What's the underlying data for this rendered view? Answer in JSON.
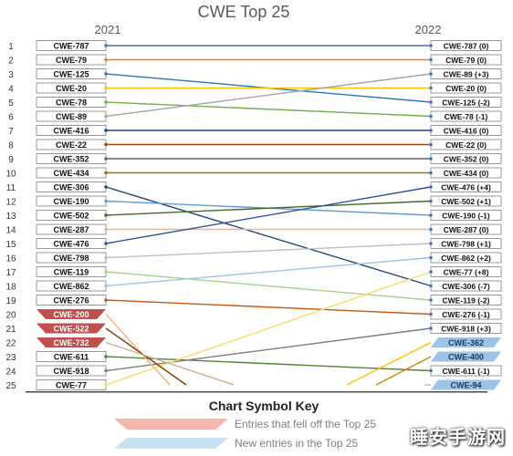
{
  "chart_data": {
    "type": "slope",
    "title": "CWE Top 25",
    "left_year": "2021",
    "right_year": "2022",
    "ranks": [
      "1",
      "2",
      "3",
      "4",
      "5",
      "6",
      "7",
      "8",
      "9",
      "10",
      "11",
      "12",
      "13",
      "14",
      "15",
      "16",
      "17",
      "18",
      "19",
      "20",
      "21",
      "22",
      "23",
      "24",
      "25"
    ],
    "left": [
      {
        "rank": 1,
        "cwe": "CWE-787",
        "color": "#4472c4"
      },
      {
        "rank": 2,
        "cwe": "CWE-79",
        "color": "#ed7d31"
      },
      {
        "rank": 3,
        "cwe": "CWE-125",
        "color": "#2e75b6"
      },
      {
        "rank": 4,
        "cwe": "CWE-20",
        "color": "#ffc000"
      },
      {
        "rank": 5,
        "cwe": "CWE-78",
        "color": "#70ad47"
      },
      {
        "rank": 6,
        "cwe": "CWE-89",
        "color": "#a5a5a5"
      },
      {
        "rank": 7,
        "cwe": "CWE-416",
        "color": "#264478"
      },
      {
        "rank": 8,
        "cwe": "CWE-22",
        "color": "#9e480e"
      },
      {
        "rank": 9,
        "cwe": "CWE-352",
        "color": "#636363"
      },
      {
        "rank": 10,
        "cwe": "CWE-434",
        "color": "#997300"
      },
      {
        "rank": 11,
        "cwe": "CWE-306",
        "color": "#264478"
      },
      {
        "rank": 12,
        "cwe": "CWE-190",
        "color": "#5b9bd5"
      },
      {
        "rank": 13,
        "cwe": "CWE-502",
        "color": "#43682b"
      },
      {
        "rank": 14,
        "cwe": "CWE-287",
        "color": "#f4b183"
      },
      {
        "rank": 15,
        "cwe": "CWE-476",
        "color": "#2e5597"
      },
      {
        "rank": 16,
        "cwe": "CWE-798",
        "color": "#bfbfbf"
      },
      {
        "rank": 17,
        "cwe": "CWE-119",
        "color": "#a9d18e"
      },
      {
        "rank": 18,
        "cwe": "CWE-862",
        "color": "#9dc3e6"
      },
      {
        "rank": 19,
        "cwe": "CWE-276",
        "color": "#c55a11"
      },
      {
        "rank": 20,
        "cwe": "CWE-200",
        "color": "#ffffff",
        "style": "fell"
      },
      {
        "rank": 21,
        "cwe": "CWE-522",
        "color": "#ffffff",
        "style": "fell"
      },
      {
        "rank": 22,
        "cwe": "CWE-732",
        "color": "#ffffff",
        "style": "fell"
      },
      {
        "rank": 23,
        "cwe": "CWE-611",
        "color": "#548235"
      },
      {
        "rank": 24,
        "cwe": "CWE-918",
        "color": "#7f7f7f"
      },
      {
        "rank": 25,
        "cwe": "CWE-77",
        "color": "#ffd966"
      }
    ],
    "right": [
      {
        "rank": 1,
        "label": "CWE-787 (0)"
      },
      {
        "rank": 2,
        "label": "CWE-79 (0)"
      },
      {
        "rank": 3,
        "label": "CWE-89 (+3)"
      },
      {
        "rank": 4,
        "label": "CWE-20 (0)"
      },
      {
        "rank": 5,
        "label": "CWE-125 (-2)"
      },
      {
        "rank": 6,
        "label": "CWE-78 (-1)"
      },
      {
        "rank": 7,
        "label": "CWE-416 (0)"
      },
      {
        "rank": 8,
        "label": "CWE-22 (0)"
      },
      {
        "rank": 9,
        "label": "CWE-352 (0)"
      },
      {
        "rank": 10,
        "label": "CWE-434 (0)"
      },
      {
        "rank": 11,
        "label": "CWE-476 (+4)"
      },
      {
        "rank": 12,
        "label": "CWE-502 (+1)"
      },
      {
        "rank": 13,
        "label": "CWE-190 (-1)"
      },
      {
        "rank": 14,
        "label": "CWE-287 (0)"
      },
      {
        "rank": 15,
        "label": "CWE-798 (+1)"
      },
      {
        "rank": 16,
        "label": "CWE-862 (+2)"
      },
      {
        "rank": 17,
        "label": "CWE-77 (+8)"
      },
      {
        "rank": 18,
        "label": "CWE-306 (-7)"
      },
      {
        "rank": 19,
        "label": "CWE-119 (-2)"
      },
      {
        "rank": 20,
        "label": "CWE-276 (-1)"
      },
      {
        "rank": 21,
        "label": "CWE-918 (+3)"
      },
      {
        "rank": 22,
        "label": "CWE-362",
        "style": "new"
      },
      {
        "rank": 23,
        "label": "CWE-400",
        "style": "new"
      },
      {
        "rank": 24,
        "label": "CWE-611 (-1)"
      },
      {
        "rank": 25,
        "label": "CWE-94",
        "style": "new"
      }
    ],
    "lines": [
      {
        "from": 1,
        "to": 1,
        "color": "#4472c4"
      },
      {
        "from": 2,
        "to": 2,
        "color": "#ed7d31"
      },
      {
        "from": 3,
        "to": 5,
        "color": "#2e75b6"
      },
      {
        "from": 4,
        "to": 4,
        "color": "#ffc000"
      },
      {
        "from": 5,
        "to": 6,
        "color": "#70ad47"
      },
      {
        "from": 6,
        "to": 3,
        "color": "#a5a5a5"
      },
      {
        "from": 7,
        "to": 7,
        "color": "#264478"
      },
      {
        "from": 8,
        "to": 8,
        "color": "#9e480e"
      },
      {
        "from": 9,
        "to": 9,
        "color": "#636363"
      },
      {
        "from": 10,
        "to": 10,
        "color": "#997300"
      },
      {
        "from": 11,
        "to": 18,
        "color": "#264478"
      },
      {
        "from": 12,
        "to": 13,
        "color": "#5b9bd5"
      },
      {
        "from": 13,
        "to": 12,
        "color": "#43682b"
      },
      {
        "from": 14,
        "to": 14,
        "color": "#f4b183"
      },
      {
        "from": 15,
        "to": 11,
        "color": "#2e5597"
      },
      {
        "from": 16,
        "to": 15,
        "color": "#bfbfbf"
      },
      {
        "from": 17,
        "to": 19,
        "color": "#a9d18e"
      },
      {
        "from": 18,
        "to": 16,
        "color": "#9dc3e6"
      },
      {
        "from": 19,
        "to": 20,
        "color": "#c55a11"
      },
      {
        "from": 23,
        "to": 24,
        "color": "#548235"
      },
      {
        "from": 24,
        "to": 21,
        "color": "#7f7f7f"
      },
      {
        "from": 25,
        "to": 17,
        "color": "#ffd966"
      }
    ],
    "exit_lines": [
      {
        "from": 20,
        "color": "#f4b183"
      },
      {
        "from": 21,
        "color": "#7f3f00"
      },
      {
        "from": 22,
        "color": "#c9b29b"
      }
    ],
    "entry_lines": [
      {
        "to": 22,
        "color": "#ffc000"
      },
      {
        "to": 23,
        "color": "#bf9000"
      },
      {
        "to": 25,
        "color": "#9dc3e6"
      }
    ],
    "key": {
      "title": "Chart Symbol Key",
      "items": [
        {
          "label": "Entries that fell off the Top 25",
          "color": "#f4b6ad"
        },
        {
          "label": "New entries in the Top 25",
          "color": "#c9e2ef"
        }
      ]
    }
  },
  "watermark": "睡安手游网",
  "colors": {
    "fell_fill": "#c0504d",
    "new_fill": "#9dc3e6",
    "box_border": "#7f7f7f",
    "rank_text": "#333333"
  }
}
